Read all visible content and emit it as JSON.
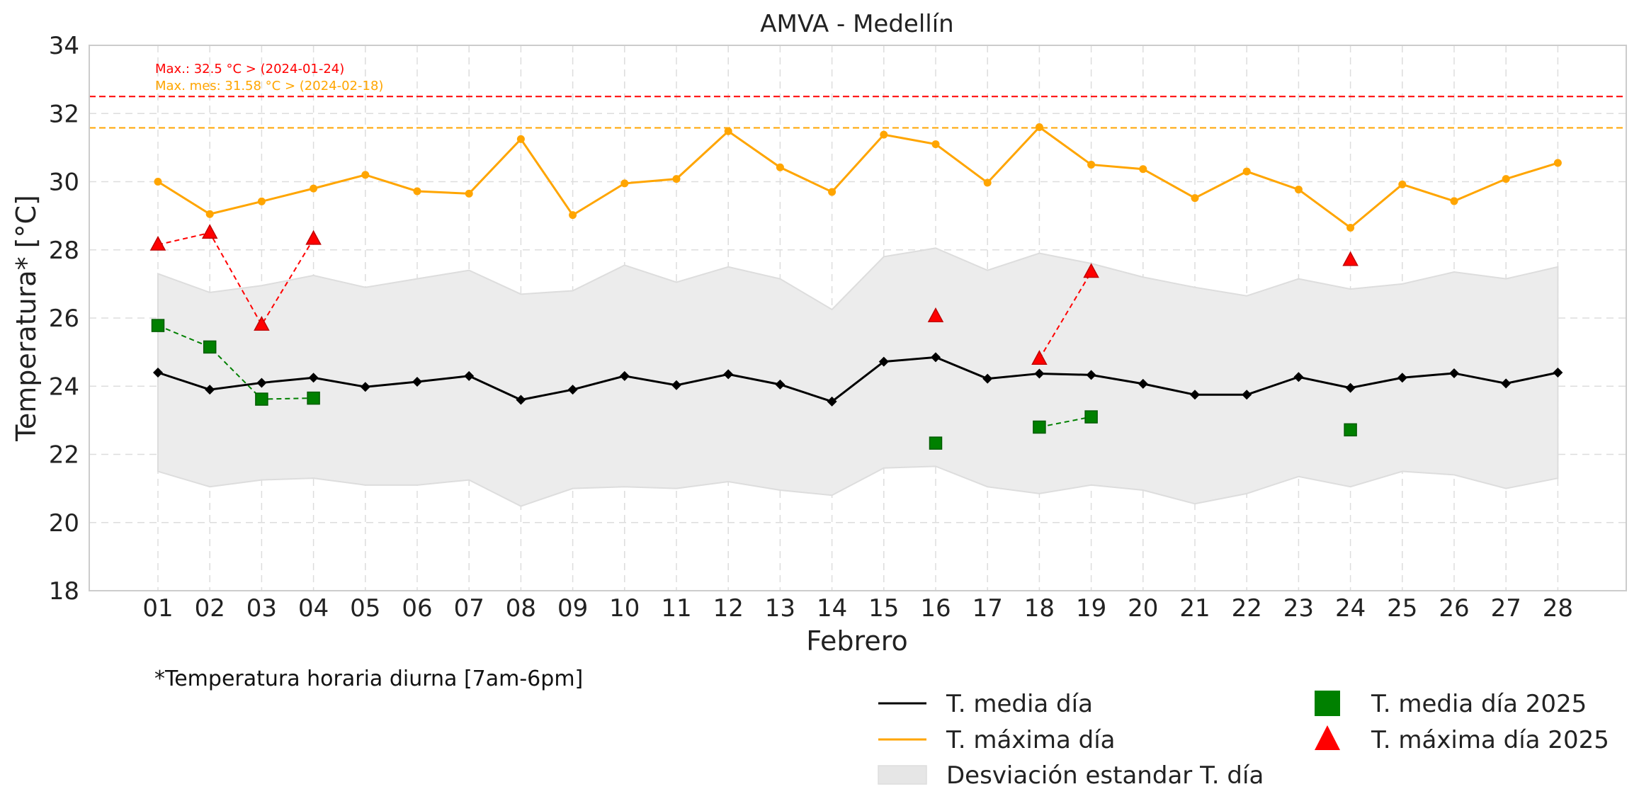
{
  "chart_data": {
    "type": "line",
    "title": "AMVA - Medellín",
    "xlabel": "Febrero",
    "ylabel": "Temperatura* [°C]",
    "ylim": [
      18,
      34
    ],
    "yticks": [
      18,
      20,
      22,
      24,
      26,
      28,
      30,
      32,
      34
    ],
    "grid": true,
    "categories": [
      "01",
      "02",
      "03",
      "04",
      "05",
      "06",
      "07",
      "08",
      "09",
      "10",
      "11",
      "12",
      "13",
      "14",
      "15",
      "16",
      "17",
      "18",
      "19",
      "20",
      "21",
      "22",
      "23",
      "24",
      "25",
      "26",
      "27",
      "28"
    ],
    "series": [
      {
        "name": "T. media día",
        "color": "#000000",
        "marker": "diamond",
        "values": [
          24.4,
          23.9,
          24.1,
          24.25,
          23.98,
          24.13,
          24.3,
          23.6,
          23.9,
          24.3,
          24.03,
          24.35,
          24.05,
          23.55,
          24.72,
          24.85,
          24.22,
          24.37,
          24.33,
          24.07,
          23.75,
          23.75,
          24.27,
          23.95,
          24.25,
          24.38,
          24.08,
          24.4
        ]
      },
      {
        "name": "T. máxima día",
        "color": "#ffa500",
        "marker": "circle",
        "values": [
          30.0,
          29.05,
          29.42,
          29.8,
          30.2,
          29.72,
          29.65,
          31.25,
          29.02,
          29.95,
          30.08,
          31.48,
          30.42,
          29.7,
          31.38,
          31.1,
          29.97,
          31.6,
          30.5,
          30.37,
          29.52,
          30.3,
          29.77,
          28.65,
          29.92,
          29.43,
          30.08,
          30.55
        ]
      },
      {
        "name": "Desviación estandar T. día",
        "color": "#d9d9d9",
        "type": "area",
        "upper": [
          27.3,
          26.75,
          26.95,
          27.25,
          26.9,
          27.15,
          27.4,
          26.7,
          26.8,
          27.55,
          27.05,
          27.5,
          27.15,
          26.25,
          27.8,
          28.05,
          27.4,
          27.9,
          27.6,
          27.2,
          26.9,
          26.65,
          27.15,
          26.85,
          27.0,
          27.35,
          27.15,
          27.5
        ],
        "lower": [
          21.5,
          21.05,
          21.25,
          21.3,
          21.1,
          21.1,
          21.25,
          20.48,
          21.0,
          21.05,
          21.0,
          21.2,
          20.95,
          20.8,
          21.6,
          21.65,
          21.05,
          20.85,
          21.1,
          20.95,
          20.55,
          20.85,
          21.35,
          21.05,
          21.5,
          21.4,
          21.0,
          21.3
        ]
      },
      {
        "name": "T. media día 2025",
        "color": "#008000",
        "marker": "square",
        "values": [
          25.78,
          25.15,
          23.62,
          23.65,
          null,
          null,
          null,
          null,
          null,
          null,
          null,
          null,
          null,
          null,
          null,
          22.33,
          null,
          22.8,
          23.1,
          null,
          null,
          null,
          null,
          22.72,
          null,
          null,
          null,
          null
        ]
      },
      {
        "name": "T. máxima día 2025",
        "color": "#ff0000",
        "marker": "triangle",
        "values": [
          28.15,
          28.5,
          25.8,
          28.32,
          null,
          null,
          null,
          null,
          null,
          null,
          null,
          null,
          null,
          null,
          null,
          26.05,
          null,
          24.8,
          27.35,
          null,
          null,
          null,
          null,
          27.7,
          null,
          null,
          null,
          null
        ]
      }
    ],
    "reference_lines": [
      {
        "value": 32.5,
        "color": "#ff0000",
        "label": "Max.: 32.5 °C  >  (2024-01-24)"
      },
      {
        "value": 31.58,
        "color": "#ffa500",
        "label": "Max. mes: 31.58 °C  >  (2024-02-18)"
      }
    ],
    "note": "*Temperatura horaria diurna [7am-6pm]",
    "legend": {
      "placement": "bottom-right",
      "items": [
        {
          "label": "T. media día",
          "color": "#000000",
          "kind": "line"
        },
        {
          "label": "T. máxima día",
          "color": "#ffa500",
          "kind": "line"
        },
        {
          "label": "Desviación estandar T. día",
          "color": "#e6e6e6",
          "kind": "patch"
        },
        {
          "label": "T. media día 2025",
          "color": "#008000",
          "kind": "square"
        },
        {
          "label": "T. máxima día 2025",
          "color": "#ff0000",
          "kind": "triangle"
        }
      ]
    }
  }
}
